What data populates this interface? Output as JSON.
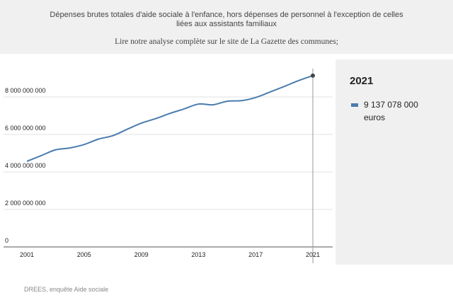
{
  "header": {
    "subtitle": "Dépenses brutes totales d'aide sociale à l'enfance, hors dépenses de personnel à l'exception de celles liées aux assistants familiaux",
    "note": "Lire notre analyse complète sur le site de La Gazette des communes;"
  },
  "panel": {
    "year": "2021",
    "value": "9 137 078 000 euros"
  },
  "source": "DREES, enquête Aide sociale",
  "colors": {
    "series": "#4a7cae",
    "header_bg": "#f0f0f0",
    "grid": "#e2e2e2"
  },
  "chart_data": {
    "type": "line",
    "title": "",
    "xlabel": "",
    "ylabel": "",
    "xlim": [
      2001,
      2021
    ],
    "ylim": [
      0,
      9200000000
    ],
    "x_ticks": [
      2001,
      2005,
      2009,
      2013,
      2017,
      2021
    ],
    "x_tick_labels": [
      "2001",
      "2005",
      "2009",
      "2013",
      "2017",
      "2021"
    ],
    "y_ticks": [
      0,
      2000000000,
      4000000000,
      6000000000,
      8000000000
    ],
    "y_tick_labels": [
      "0",
      "2 000 000 000",
      "4 000 000 000",
      "6 000 000 000",
      "8 000 000 000"
    ],
    "grid": true,
    "highlight_x": 2021,
    "series": [
      {
        "name": "",
        "x": [
          2001,
          2002,
          2003,
          2004,
          2005,
          2006,
          2007,
          2008,
          2009,
          2010,
          2011,
          2012,
          2013,
          2014,
          2015,
          2016,
          2017,
          2018,
          2019,
          2020,
          2021
        ],
        "values": [
          4570000000,
          4870000000,
          5180000000,
          5280000000,
          5460000000,
          5750000000,
          5930000000,
          6270000000,
          6600000000,
          6840000000,
          7120000000,
          7360000000,
          7620000000,
          7580000000,
          7770000000,
          7800000000,
          7970000000,
          8260000000,
          8560000000,
          8870000000,
          9137078000
        ]
      }
    ]
  }
}
